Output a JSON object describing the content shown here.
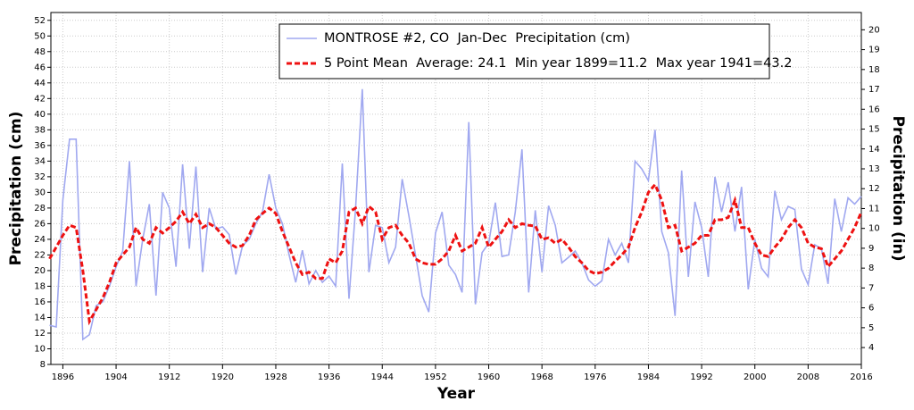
{
  "chart_data": {
    "type": "line",
    "xlabel": "Year",
    "ylabel": "Precipitation (cm)",
    "y2label": "Precipitation (in)",
    "x": [
      1894,
      1895,
      1896,
      1897,
      1898,
      1899,
      1900,
      1901,
      1902,
      1903,
      1904,
      1905,
      1906,
      1907,
      1908,
      1909,
      1910,
      1911,
      1912,
      1913,
      1914,
      1915,
      1916,
      1917,
      1918,
      1919,
      1920,
      1921,
      1922,
      1923,
      1924,
      1925,
      1926,
      1927,
      1928,
      1929,
      1930,
      1931,
      1932,
      1933,
      1934,
      1935,
      1936,
      1937,
      1938,
      1939,
      1940,
      1941,
      1942,
      1943,
      1944,
      1945,
      1946,
      1947,
      1948,
      1949,
      1950,
      1951,
      1952,
      1953,
      1954,
      1955,
      1956,
      1957,
      1958,
      1959,
      1960,
      1961,
      1962,
      1963,
      1964,
      1965,
      1966,
      1967,
      1968,
      1969,
      1970,
      1971,
      1972,
      1973,
      1974,
      1975,
      1976,
      1977,
      1978,
      1979,
      1980,
      1981,
      1982,
      1983,
      1984,
      1985,
      1986,
      1987,
      1988,
      1989,
      1990,
      1991,
      1992,
      1993,
      1994,
      1995,
      1996,
      1997,
      1998,
      1999,
      2000,
      2001,
      2002,
      2003,
      2004,
      2005,
      2006,
      2007,
      2008,
      2009,
      2010,
      2011,
      2012,
      2013,
      2014,
      2015,
      2016
    ],
    "series": [
      {
        "name": "MONTROSE #2, CO  Jan-Dec  Precipitation (cm)",
        "color": "#a0a8f0",
        "dash": false,
        "values": [
          13,
          12.8,
          29,
          36.8,
          36.8,
          11.2,
          11.8,
          15.5,
          16,
          18,
          20.5,
          22.5,
          34,
          18,
          24,
          28.5,
          16.8,
          30,
          28,
          20.5,
          33.6,
          22.8,
          33.3,
          19.8,
          28,
          25.3,
          25.6,
          24.6,
          19.5,
          23.2,
          24,
          26,
          27.5,
          32.3,
          28,
          26,
          22,
          18.5,
          22.6,
          18.3,
          20,
          18.5,
          19.3,
          18,
          33.7,
          16.4,
          28,
          43.2,
          19.8,
          25.8,
          25.5,
          21,
          23,
          31.7,
          27,
          22,
          16.8,
          14.7,
          24.8,
          27.5,
          20.7,
          19.5,
          17.2,
          39,
          15.7,
          22.3,
          23.5,
          28.7,
          21.8,
          22,
          27.5,
          35.5,
          17.2,
          27.7,
          19.8,
          28.3,
          25.8,
          21,
          21.7,
          22.5,
          21,
          18.8,
          18,
          18.7,
          24,
          22,
          23.5,
          21,
          34,
          33,
          31.5,
          38,
          25,
          22.3,
          14.2,
          32.8,
          19.2,
          28.8,
          25.5,
          19.2,
          32,
          27.5,
          31.3,
          25,
          30.7,
          17.6,
          24,
          20.3,
          19.2,
          30.2,
          26.5,
          28.2,
          27.8,
          20.2,
          18.2,
          23.3,
          22.8,
          18.3,
          29.2,
          25,
          29.3,
          28.5,
          29.5
        ]
      },
      {
        "name": "5 Point Mean  Average: 24.1  Min year 1899=11.2  Max year 1941=43.2",
        "color": "#ee1111",
        "dash": true,
        "values": [
          21.5,
          23,
          24.5,
          25.8,
          25.5,
          20,
          13.5,
          15,
          16.5,
          18.5,
          21,
          22,
          23,
          25.5,
          24,
          23.5,
          25.5,
          24.8,
          25.5,
          26.3,
          27.5,
          26,
          27.2,
          25.5,
          26,
          25.5,
          24.5,
          23.5,
          23,
          23.2,
          24.5,
          26.5,
          27.3,
          28,
          27.3,
          25,
          23,
          21,
          19.5,
          19.8,
          19,
          19,
          21.5,
          21,
          22.5,
          27.5,
          28,
          26,
          28.2,
          27.5,
          24,
          25.5,
          25.8,
          24.5,
          23.5,
          21.5,
          21,
          20.8,
          20.8,
          21.5,
          22.5,
          24.5,
          22.5,
          23,
          23.5,
          25.5,
          23,
          24,
          25,
          26.5,
          25.5,
          26,
          25.8,
          25.7,
          24,
          24.2,
          23.5,
          24,
          23,
          21.8,
          21,
          20,
          19.6,
          19.8,
          20.3,
          21.2,
          22,
          23,
          25.5,
          27.5,
          30,
          31,
          29,
          25.5,
          25.8,
          22.5,
          23,
          23.5,
          24.5,
          24.5,
          26.5,
          26.5,
          26.8,
          29,
          25.5,
          25.5,
          23.5,
          22,
          21.8,
          23,
          24,
          25.5,
          26.5,
          25.5,
          23.5,
          23,
          22.8,
          20.5,
          21.5,
          22.5,
          24,
          25.5,
          27.5
        ]
      }
    ],
    "xlim": [
      1894.2,
      2016
    ],
    "xticks": [
      1896,
      1904,
      1912,
      1920,
      1928,
      1936,
      1944,
      1952,
      1960,
      1968,
      1976,
      1984,
      1992,
      2000,
      2008,
      2016
    ],
    "ylim": [
      8,
      53
    ],
    "yticks": [
      8,
      10,
      12,
      14,
      16,
      18,
      20,
      22,
      24,
      26,
      28,
      30,
      32,
      34,
      36,
      38,
      40,
      42,
      44,
      46,
      48,
      50,
      52
    ],
    "y2lim": [
      3.15,
      20.87
    ],
    "y2ticks": [
      4,
      5,
      6,
      7,
      8,
      9,
      10,
      11,
      12,
      13,
      14,
      15,
      16,
      17,
      18,
      19,
      20
    ],
    "grid": true,
    "legend": "top-right"
  }
}
